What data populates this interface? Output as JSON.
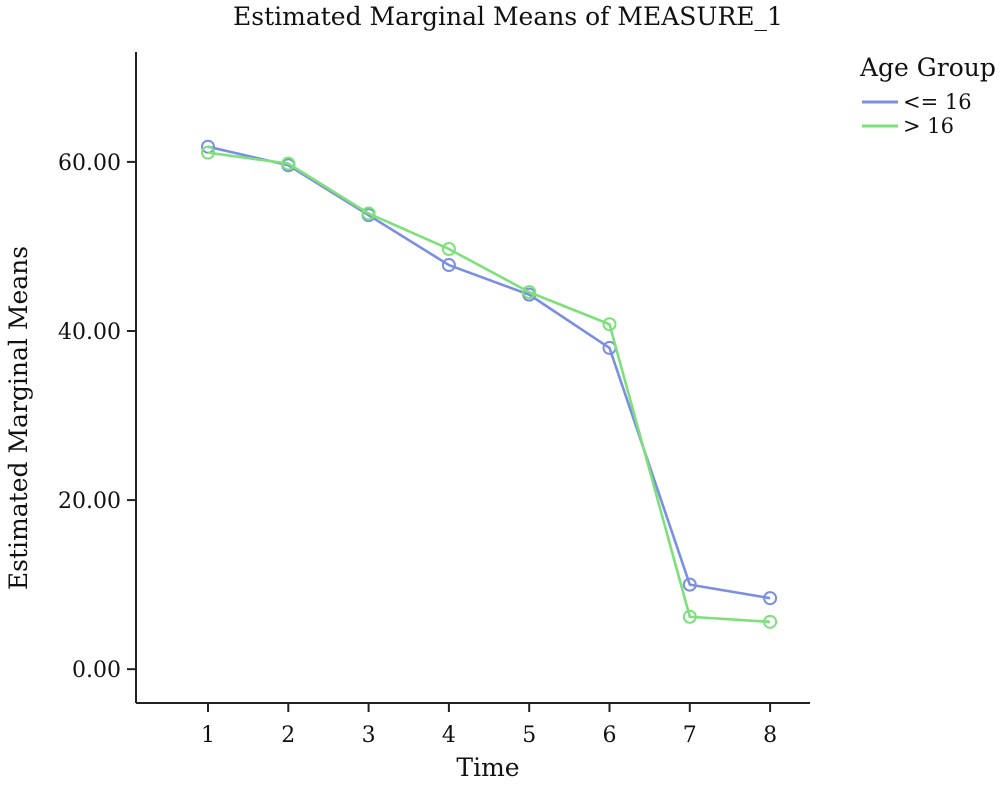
{
  "chart_data": {
    "type": "line",
    "title": "Estimated Marginal Means of MEASURE_1",
    "xlabel": "Time",
    "ylabel": "Estimated Marginal Means",
    "categories": [
      "1",
      "2",
      "3",
      "4",
      "5",
      "6",
      "7",
      "8"
    ],
    "y_ticks": [
      "0.00",
      "20.00",
      "40.00",
      "60.00"
    ],
    "ylim": [
      -4,
      73
    ],
    "grid": false,
    "legend": {
      "title": "Age Group",
      "position": "top-right"
    },
    "series": [
      {
        "name": "<= 16",
        "color": "#7b8fe0",
        "values": [
          61.8,
          59.6,
          53.7,
          47.8,
          44.3,
          38.0,
          10.0,
          8.4
        ]
      },
      {
        "name": "> 16",
        "color": "#7ee07b",
        "values": [
          61.1,
          59.8,
          53.9,
          49.7,
          44.6,
          40.8,
          6.2,
          5.6
        ]
      }
    ]
  }
}
